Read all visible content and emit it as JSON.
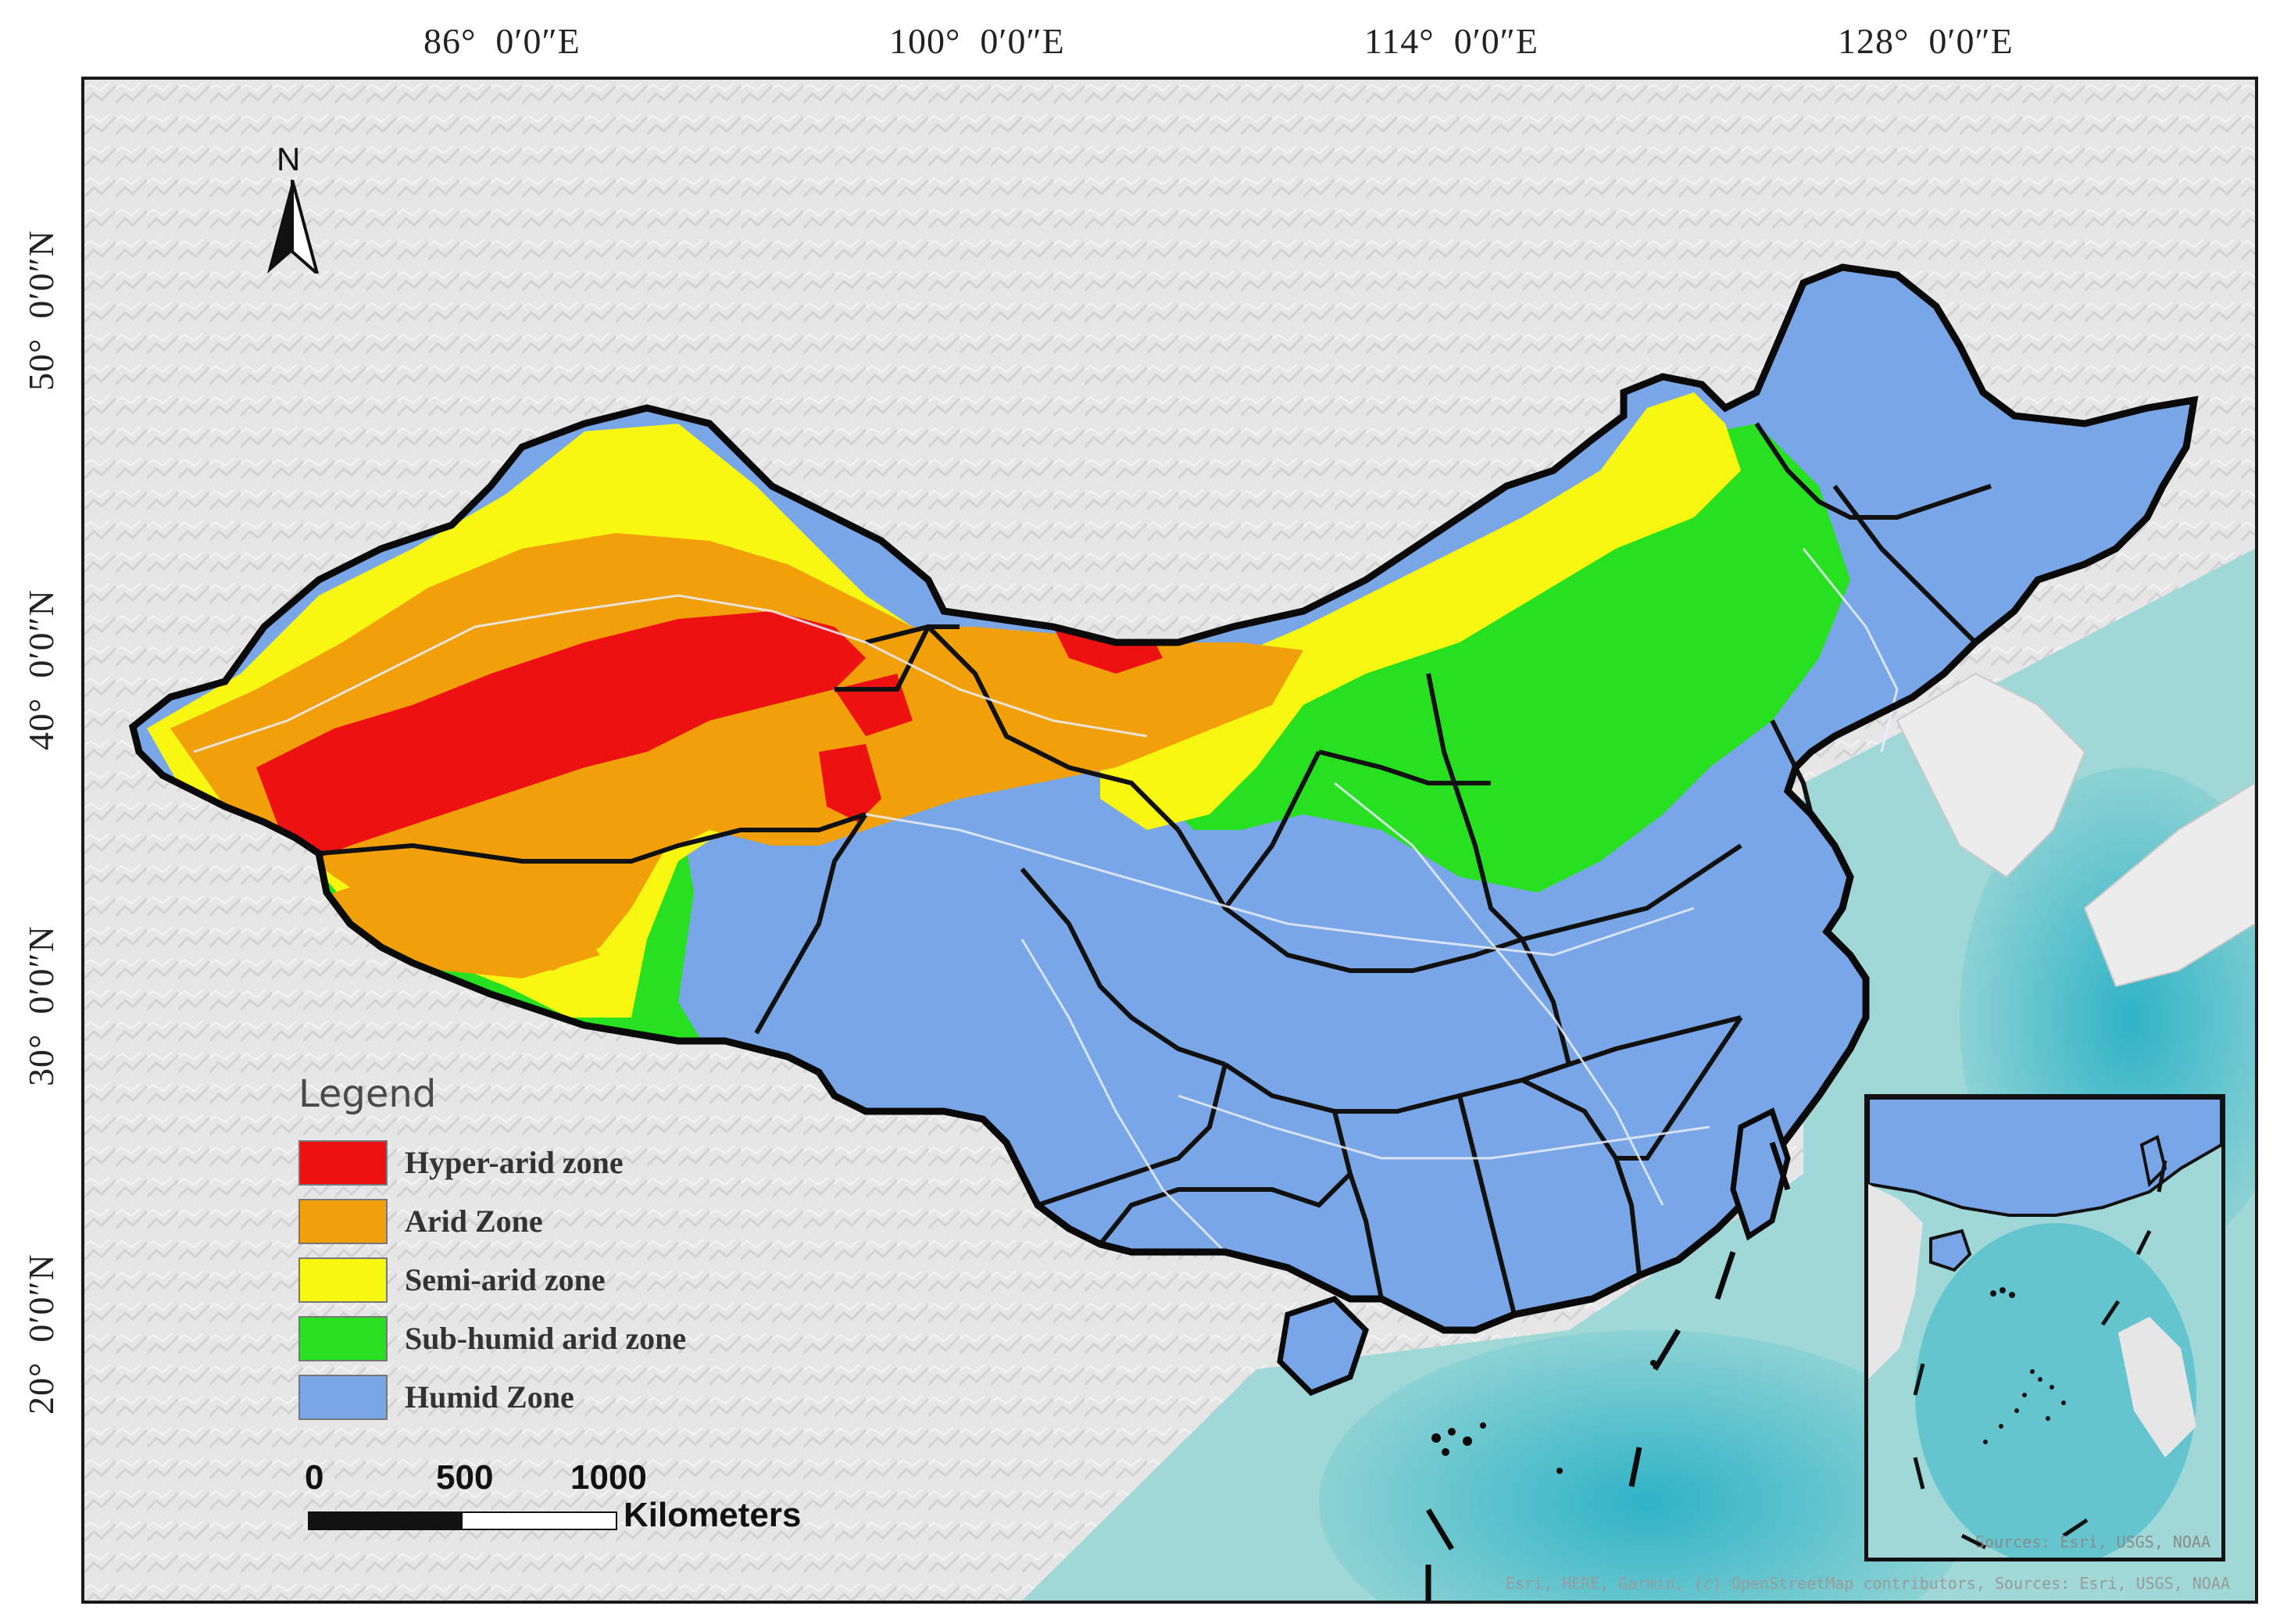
{
  "longitude_labels": [
    {
      "deg": "86°",
      "rest": "0′0″E"
    },
    {
      "deg": "100°",
      "rest": "0′0″E"
    },
    {
      "deg": "114°",
      "rest": "0′0″E"
    },
    {
      "deg": "128°",
      "rest": "0′0″E"
    }
  ],
  "latitude_labels": [
    {
      "deg": "50°",
      "rest": "0′0″N"
    },
    {
      "deg": "40°",
      "rest": "0′0″N"
    },
    {
      "deg": "30°",
      "rest": "0′0″N"
    },
    {
      "deg": "20°",
      "rest": "0′0″N"
    }
  ],
  "north_arrow": {
    "letter": "N",
    "icon": "north-arrow-icon"
  },
  "legend": {
    "title": "Legend",
    "items": [
      {
        "label": "Hyper-arid zone",
        "color": "#ee1111"
      },
      {
        "label": "Arid Zone",
        "color": "#f2a00a"
      },
      {
        "label": "Semi-arid zone",
        "color": "#f7f712"
      },
      {
        "label": "Sub-humid arid zone",
        "color": "#27e020"
      },
      {
        "label": "Humid Zone",
        "color": "#78a6e6"
      }
    ]
  },
  "scale_bar": {
    "ticks": [
      "0",
      "500",
      "1000"
    ],
    "unit": "Kilometers"
  },
  "inset": {
    "credit": "Sources: Esri, USGS, NOAA"
  },
  "credit": "Esri, HERE, Garmin, (c) OpenStreetMap contributors, Sources: Esri, USGS, NOAA",
  "colors": {
    "ocean": "#9fd8d6",
    "deep_ocean": "#3fb9c9",
    "land_background": "#e4e4e4",
    "boundary": "#111111"
  }
}
